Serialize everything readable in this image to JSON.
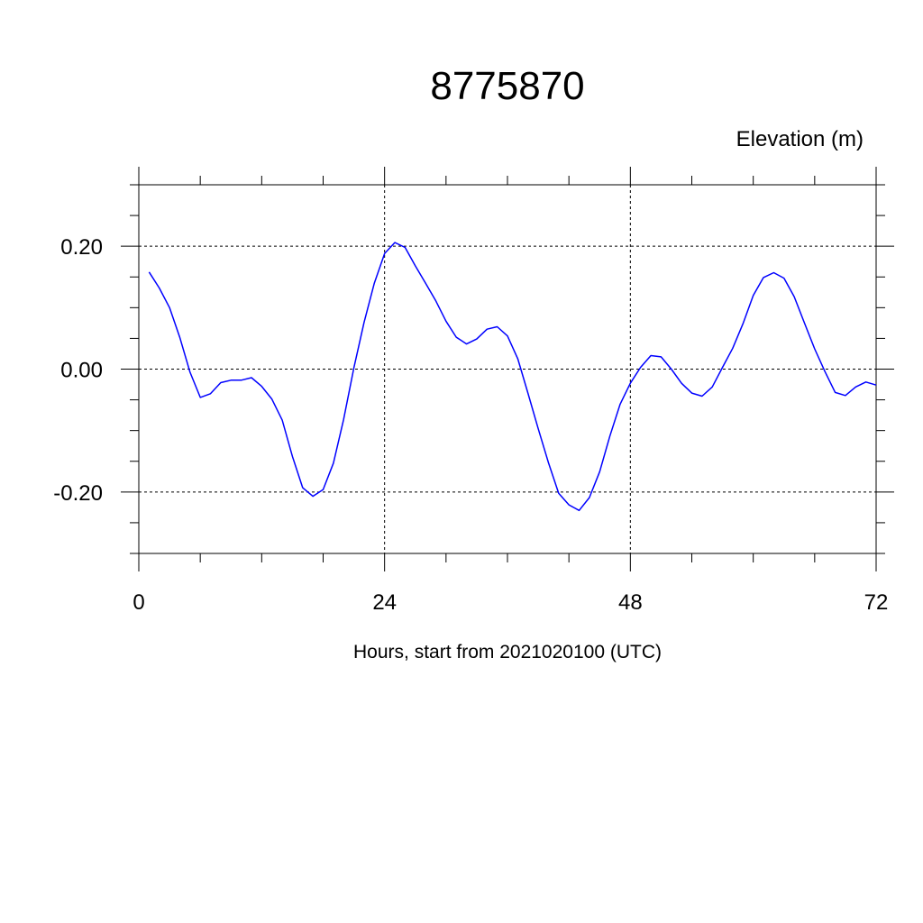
{
  "chart_data": {
    "type": "line",
    "title": "8775870",
    "units_label": "Elevation (m)",
    "xlabel": "Hours, start from 2021020100 (UTC)",
    "ylabel": "",
    "xlim": [
      0,
      72
    ],
    "ylim": [
      -0.3,
      0.3
    ],
    "x_ticks": [
      0,
      24,
      48,
      72
    ],
    "x_tick_labels": [
      "0",
      "24",
      "48",
      "72"
    ],
    "y_ticks": [
      -0.2,
      0.0,
      0.2
    ],
    "y_tick_labels": [
      "-0.20",
      "0.00",
      "0.20"
    ],
    "grid": true,
    "series": [
      {
        "color": "#0000ff",
        "x": [
          1,
          2,
          3,
          4,
          5,
          6,
          7,
          8,
          9,
          10,
          11,
          12,
          13,
          14,
          15,
          16,
          17,
          18,
          19,
          20,
          21,
          22,
          23,
          24,
          25,
          26,
          27,
          28,
          29,
          30,
          31,
          32,
          33,
          34,
          35,
          36,
          37,
          38,
          39,
          40,
          41,
          42,
          43,
          44,
          45,
          46,
          47,
          48,
          49,
          50,
          51,
          52,
          53,
          54,
          55,
          56,
          57,
          58,
          59,
          60,
          61,
          62,
          63,
          64,
          65,
          66,
          67,
          68,
          69,
          70,
          71,
          72
        ],
        "values": [
          0.158,
          0.132,
          0.1,
          0.052,
          -0.005,
          -0.046,
          -0.04,
          -0.022,
          -0.018,
          -0.018,
          -0.014,
          -0.028,
          -0.049,
          -0.083,
          -0.142,
          -0.193,
          -0.207,
          -0.196,
          -0.153,
          -0.082,
          0.002,
          0.076,
          0.14,
          0.188,
          0.206,
          0.198,
          0.168,
          0.14,
          0.111,
          0.078,
          0.052,
          0.041,
          0.049,
          0.065,
          0.069,
          0.054,
          0.017,
          -0.039,
          -0.097,
          -0.152,
          -0.202,
          -0.221,
          -0.23,
          -0.209,
          -0.167,
          -0.109,
          -0.057,
          -0.023,
          0.003,
          0.022,
          0.02,
          0.0,
          -0.023,
          -0.039,
          -0.044,
          -0.029,
          0.003,
          0.034,
          0.074,
          0.12,
          0.149,
          0.157,
          0.148,
          0.118,
          0.075,
          0.033,
          -0.004,
          -0.038,
          -0.043,
          -0.029,
          -0.021,
          -0.026
        ]
      }
    ]
  }
}
